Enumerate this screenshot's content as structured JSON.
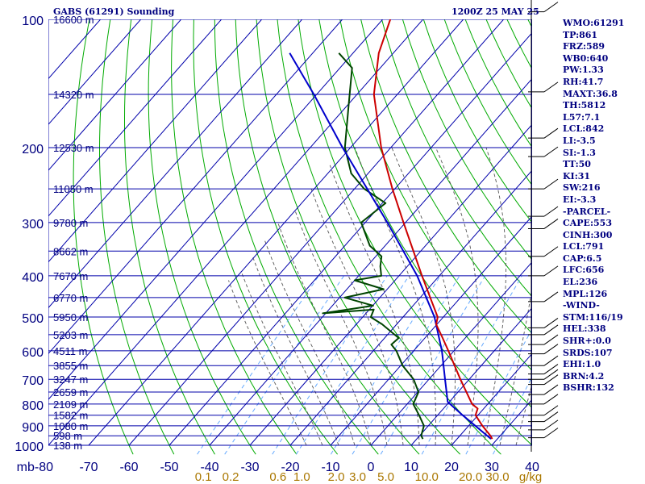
{
  "header": {
    "station": "GABS (61291) Sounding",
    "time": "1200Z 25 MAY 25"
  },
  "indices": [
    "WMO:61291",
    "TP:861",
    "FRZ:589",
    "WB0:640",
    "PW:1.33",
    "RH:41.7",
    "MAXT:36.8",
    "TH:5812",
    "L57:7.1",
    "LCL:842",
    "LI:-3.5",
    "SI:-1.3",
    "TT:50",
    "KI:31",
    "SW:216",
    "EI:-3.3",
    "-PARCEL-",
    "CAPE:553",
    "CINH:300",
    "LCL:791",
    "CAP:6.5",
    "LFC:656",
    "EL:236",
    "MPL:126",
    "-WIND-",
    "STM:116/19",
    "HEL:338",
    "SHR+:0.0",
    "SRDS:107",
    "EHI:1.0",
    "BRN:4.2",
    "BSHR:132"
  ],
  "colors": {
    "isobar": "#0000aa",
    "isotherm": "#0000aa",
    "dry_adiabat": "#00aa00",
    "moist_adiabat": "#555555",
    "mixing_ratio": "#66aaff",
    "temperature": "#cc0000",
    "dewpoint": "#004400",
    "parcel": "#0000cc",
    "label": "#000080",
    "mixing_label": "#aa7700"
  },
  "chart_data": {
    "type": "skew-t",
    "title": "GABS (61291) Sounding",
    "pressure_unit": "mb",
    "mixing_unit": "g/kg",
    "pressure_levels": [
      100,
      200,
      300,
      400,
      500,
      600,
      700,
      800,
      900,
      1000
    ],
    "pressure_labels": [
      "100",
      "200",
      "300",
      "400",
      "500",
      "600",
      "700",
      "800",
      "900",
      "1000"
    ],
    "height_levels": [
      {
        "p": 100,
        "label": "16600 m"
      },
      {
        "p": 150,
        "label": "14320 m"
      },
      {
        "p": 200,
        "label": "12530 m"
      },
      {
        "p": 250,
        "label": "11050 m"
      },
      {
        "p": 300,
        "label": "9780 m"
      },
      {
        "p": 350,
        "label": "8662 m"
      },
      {
        "p": 400,
        "label": "7670 m"
      },
      {
        "p": 450,
        "label": "6770 m"
      },
      {
        "p": 500,
        "label": "5950 m"
      },
      {
        "p": 550,
        "label": "5203 m"
      },
      {
        "p": 600,
        "label": "4511 m"
      },
      {
        "p": 650,
        "label": "3855 m"
      },
      {
        "p": 700,
        "label": "3247 m"
      },
      {
        "p": 750,
        "label": "2659 m"
      },
      {
        "p": 800,
        "label": "2109 m"
      },
      {
        "p": 850,
        "label": "1582 m"
      },
      {
        "p": 900,
        "label": "1080 m"
      },
      {
        "p": 950,
        "label": "598 m"
      },
      {
        "p": 1000,
        "label": "138 m"
      }
    ],
    "temperature_ticks": [
      -80,
      -70,
      -60,
      -50,
      -40,
      -30,
      -20,
      -10,
      0,
      10,
      20,
      30,
      40
    ],
    "temperature_labels": [
      "mb-80",
      "-70",
      "-60",
      "-50",
      "-40",
      "-30",
      "-20",
      "-10",
      "0",
      "10",
      "20",
      "30",
      "40"
    ],
    "mixing_ratio_labels": [
      "0.1",
      "0.2",
      "0.6",
      "1.0",
      "2.0",
      "3.0",
      "5.0",
      "10.0",
      "20.0",
      "30.0",
      "g/kg"
    ],
    "temperature": [
      {
        "p": 966,
        "t": 28.7
      },
      {
        "p": 950,
        "t": 27.6
      },
      {
        "p": 900,
        "t": 23.4
      },
      {
        "p": 850,
        "t": 19.4
      },
      {
        "p": 820,
        "t": 18.5
      },
      {
        "p": 800,
        "t": 16.1
      },
      {
        "p": 700,
        "t": 7.8
      },
      {
        "p": 600,
        "t": -1.4
      },
      {
        "p": 560,
        "t": -5.6
      },
      {
        "p": 520,
        "t": -10.2
      },
      {
        "p": 500,
        "t": -11.4
      },
      {
        "p": 450,
        "t": -17.5
      },
      {
        "p": 400,
        "t": -24.3
      },
      {
        "p": 300,
        "t": -40.5
      },
      {
        "p": 250,
        "t": -50.6
      },
      {
        "p": 200,
        "t": -62.4
      },
      {
        "p": 150,
        "t": -75.8
      },
      {
        "p": 120,
        "t": -83.6
      },
      {
        "p": 100,
        "t": -88.1
      }
    ],
    "dewpoint": [
      {
        "p": 966,
        "t": 11.5
      },
      {
        "p": 950,
        "t": 10.4
      },
      {
        "p": 900,
        "t": 8.9
      },
      {
        "p": 850,
        "t": 5.4
      },
      {
        "p": 800,
        "t": 1.5
      },
      {
        "p": 750,
        "t": 0.2
      },
      {
        "p": 700,
        "t": -3.8
      },
      {
        "p": 650,
        "t": -9.5
      },
      {
        "p": 600,
        "t": -14.3
      },
      {
        "p": 580,
        "t": -16.9
      },
      {
        "p": 560,
        "t": -16.5
      },
      {
        "p": 520,
        "t": -23.6
      },
      {
        "p": 500,
        "t": -28.0
      },
      {
        "p": 480,
        "t": -28.9
      },
      {
        "p": 490,
        "t": -40.7
      },
      {
        "p": 470,
        "t": -29.9
      },
      {
        "p": 450,
        "t": -38.7
      },
      {
        "p": 430,
        "t": -30.9
      },
      {
        "p": 410,
        "t": -40.0
      },
      {
        "p": 400,
        "t": -34.4
      },
      {
        "p": 380,
        "t": -36.7
      },
      {
        "p": 360,
        "t": -38.6
      },
      {
        "p": 340,
        "t": -43.8
      },
      {
        "p": 300,
        "t": -51.0
      },
      {
        "p": 270,
        "t": -49.2
      },
      {
        "p": 250,
        "t": -57.6
      },
      {
        "p": 230,
        "t": -64.2
      },
      {
        "p": 200,
        "t": -71.4
      },
      {
        "p": 160,
        "t": -79.5
      },
      {
        "p": 130,
        "t": -87.0
      },
      {
        "p": 120,
        "t": -93.5
      }
    ],
    "parcel": [
      {
        "p": 966,
        "t": 28.4
      },
      {
        "p": 850,
        "t": 16.2
      },
      {
        "p": 791,
        "t": 9.6
      },
      {
        "p": 700,
        "t": 4.0
      },
      {
        "p": 600,
        "t": -3.0
      },
      {
        "p": 500,
        "t": -12.2
      },
      {
        "p": 400,
        "t": -25.5
      },
      {
        "p": 300,
        "t": -44.5
      },
      {
        "p": 200,
        "t": -72.0
      },
      {
        "p": 150,
        "t": -90.7
      },
      {
        "p": 120,
        "t": -105.7
      }
    ],
    "pressure_range": [
      100,
      1000
    ],
    "temperature_range": [
      -80,
      40
    ],
    "grid": true
  }
}
